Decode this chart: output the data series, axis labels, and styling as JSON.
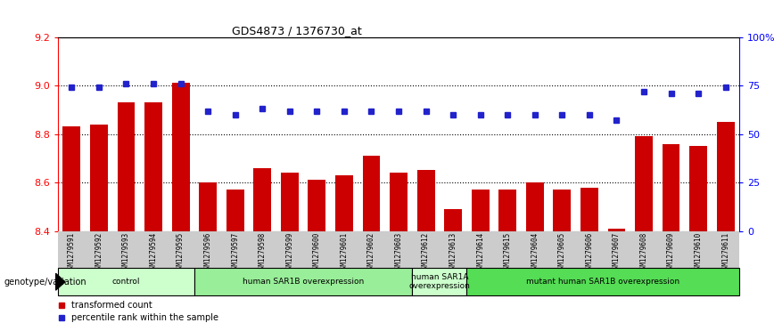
{
  "title": "GDS4873 / 1376730_at",
  "samples": [
    "GSM1279591",
    "GSM1279592",
    "GSM1279593",
    "GSM1279594",
    "GSM1279595",
    "GSM1279596",
    "GSM1279597",
    "GSM1279598",
    "GSM1279599",
    "GSM1279600",
    "GSM1279601",
    "GSM1279602",
    "GSM1279603",
    "GSM1279612",
    "GSM1279613",
    "GSM1279614",
    "GSM1279615",
    "GSM1279604",
    "GSM1279605",
    "GSM1279606",
    "GSM1279607",
    "GSM1279608",
    "GSM1279609",
    "GSM1279610",
    "GSM1279611"
  ],
  "bar_values": [
    8.83,
    8.84,
    8.93,
    8.93,
    9.01,
    8.6,
    8.57,
    8.66,
    8.64,
    8.61,
    8.63,
    8.71,
    8.64,
    8.65,
    8.49,
    8.57,
    8.57,
    8.6,
    8.57,
    8.58,
    8.41,
    8.79,
    8.76,
    8.75,
    8.85
  ],
  "bar_color": "#cc0000",
  "dot_color": "#2222cc",
  "ylim_left": [
    8.4,
    9.2
  ],
  "ylim_right": [
    0,
    100
  ],
  "yticks_left": [
    8.4,
    8.6,
    8.8,
    9.0,
    9.2
  ],
  "yticks_right": [
    0,
    25,
    50,
    75,
    100
  ],
  "ytick_labels_right": [
    "0",
    "25",
    "50",
    "75",
    "100%"
  ],
  "dot_percentile_values": [
    74,
    74,
    76,
    76,
    76,
    62,
    60,
    63,
    62,
    62,
    62,
    62,
    62,
    62,
    60,
    60,
    60,
    60,
    60,
    60,
    57,
    72,
    71,
    71,
    74
  ],
  "groups": [
    {
      "label": "control",
      "start": 0,
      "end": 5,
      "color": "#ccffcc"
    },
    {
      "label": "human SAR1B overexpression",
      "start": 5,
      "end": 13,
      "color": "#99ee99"
    },
    {
      "label": "human SAR1A\noverexpression",
      "start": 13,
      "end": 15,
      "color": "#ccffcc"
    },
    {
      "label": "mutant human SAR1B overexpression",
      "start": 15,
      "end": 25,
      "color": "#55dd55"
    }
  ],
  "genotype_label": "genotype/variation",
  "legend_bar_label": "transformed count",
  "legend_dot_label": "percentile rank within the sample",
  "bar_width": 0.65,
  "tick_area_color": "#cccccc"
}
